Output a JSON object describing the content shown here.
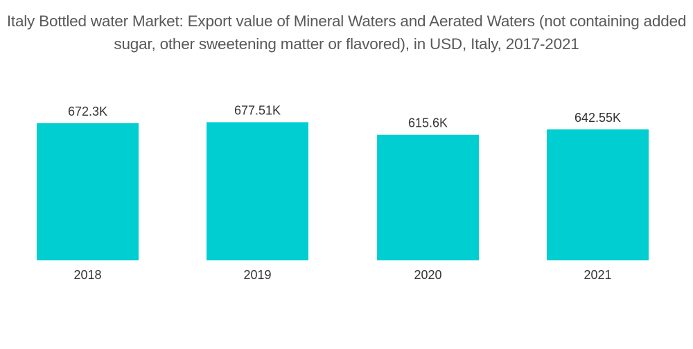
{
  "chart_data": {
    "type": "bar",
    "title": "Italy Bottled water Market: Export value of Mineral Waters and Aerated Waters (not containing added sugar, other sweetening matter or flavored), in USD, Italy, 2017-2021",
    "categories": [
      "2018",
      "2019",
      "2020",
      "2021"
    ],
    "values": [
      672.3,
      677.51,
      615.6,
      642.55
    ],
    "data_labels": [
      "672.3K",
      "677.51K",
      "615.6K",
      "642.55K"
    ],
    "unit": "K USD",
    "xlabel": "",
    "ylabel": "",
    "ylim": [
      0,
      672.3
    ],
    "grid": false,
    "legend": "none",
    "bar_color": "#00CED1"
  }
}
